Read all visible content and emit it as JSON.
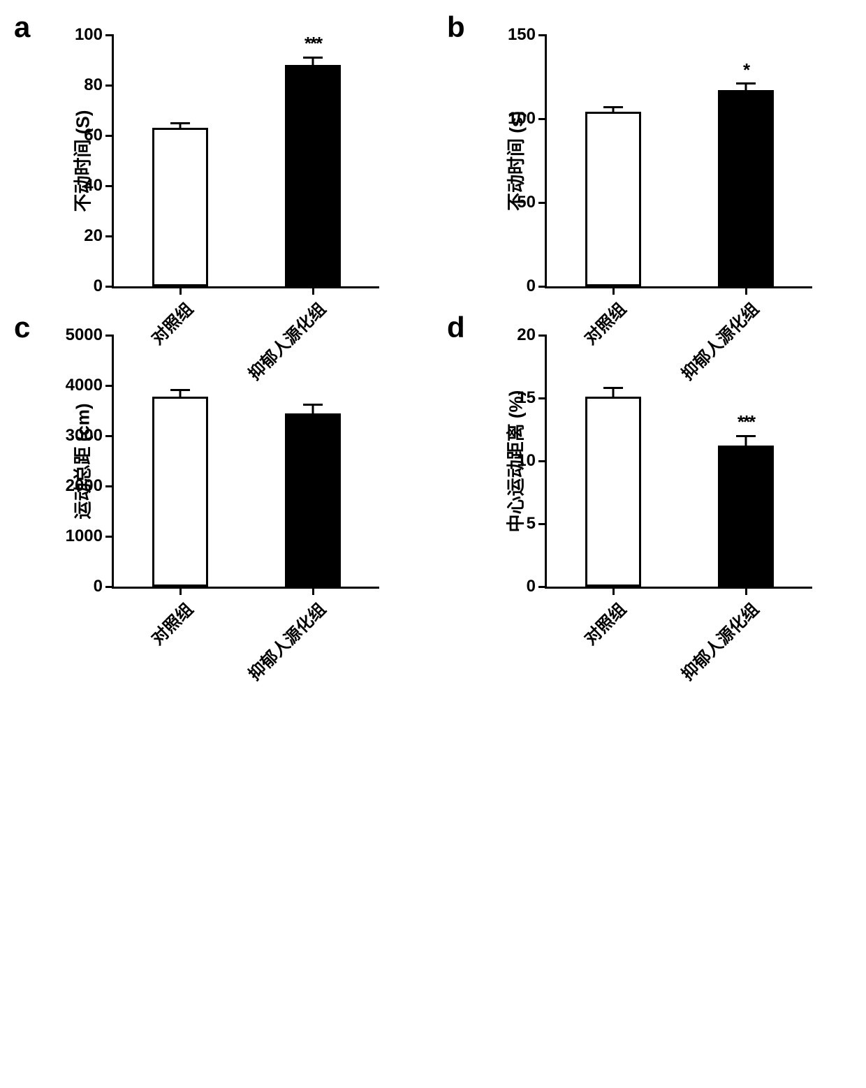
{
  "layout": {
    "rows": 2,
    "cols": 2,
    "panel_label_fontsize": 42
  },
  "panels": [
    {
      "label": "a",
      "type": "bar",
      "ylabel": "不动时间 (S)",
      "ylim": [
        0,
        100
      ],
      "yticks": [
        0,
        20,
        40,
        60,
        80,
        100
      ],
      "categories": [
        "对照组",
        "抑郁人源化组"
      ],
      "values": [
        63,
        88
      ],
      "errors": [
        2,
        3
      ],
      "colors": [
        "#ffffff",
        "#000000"
      ],
      "sig": [
        "",
        "***"
      ],
      "bar_width": 0.42,
      "border_color": "#000000",
      "line_width": 3,
      "tick_fontsize": 24,
      "label_fontsize": 26
    },
    {
      "label": "b",
      "type": "bar",
      "ylabel": "不动时间 (s)",
      "ylim": [
        0,
        150
      ],
      "yticks": [
        0,
        50,
        100,
        150
      ],
      "categories": [
        "对照组",
        "抑郁人源化组"
      ],
      "values": [
        104,
        117
      ],
      "errors": [
        3,
        4
      ],
      "colors": [
        "#ffffff",
        "#000000"
      ],
      "sig": [
        "",
        "*"
      ],
      "bar_width": 0.42,
      "border_color": "#000000",
      "line_width": 3,
      "tick_fontsize": 24,
      "label_fontsize": 26
    },
    {
      "label": "c",
      "type": "bar",
      "ylabel": "运动总距 (cm)",
      "ylim": [
        0,
        5000
      ],
      "yticks": [
        0,
        1000,
        2000,
        3000,
        4000,
        5000
      ],
      "categories": [
        "对照组",
        "抑郁人源化组"
      ],
      "values": [
        3780,
        3450
      ],
      "errors": [
        130,
        170
      ],
      "colors": [
        "#ffffff",
        "#000000"
      ],
      "sig": [
        "",
        ""
      ],
      "bar_width": 0.42,
      "border_color": "#000000",
      "line_width": 3,
      "tick_fontsize": 24,
      "label_fontsize": 26
    },
    {
      "label": "d",
      "type": "bar",
      "ylabel": "中心运动距离 (%)",
      "ylim": [
        0,
        20
      ],
      "yticks": [
        0,
        5,
        10,
        15,
        20
      ],
      "categories": [
        "对照组",
        "抑郁人源化组"
      ],
      "values": [
        15.1,
        11.2
      ],
      "errors": [
        0.7,
        0.8
      ],
      "colors": [
        "#ffffff",
        "#000000"
      ],
      "sig": [
        "",
        "***"
      ],
      "bar_width": 0.42,
      "border_color": "#000000",
      "line_width": 3,
      "tick_fontsize": 24,
      "label_fontsize": 26
    }
  ]
}
